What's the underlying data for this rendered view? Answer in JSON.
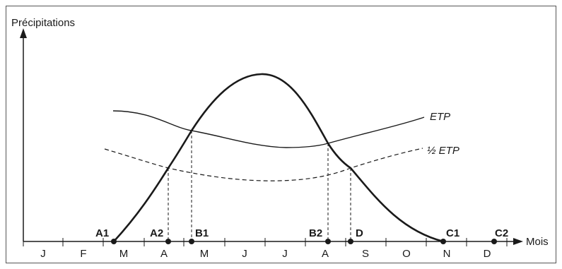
{
  "y_axis_label": "Précipitations",
  "x_axis_label": "Mois",
  "months": [
    "J",
    "F",
    "M",
    "A",
    "M",
    "J",
    "J",
    "A",
    "S",
    "O",
    "N",
    "D"
  ],
  "curves": {
    "etp_label": "ETP",
    "half_etp_label": "½ ETP"
  },
  "points": [
    {
      "id": "A1",
      "label": "A1"
    },
    {
      "id": "A2",
      "label": "A2"
    },
    {
      "id": "B1",
      "label": "B1"
    },
    {
      "id": "B2",
      "label": "B2"
    },
    {
      "id": "D",
      "label": "D"
    },
    {
      "id": "C1",
      "label": "C1"
    },
    {
      "id": "C2",
      "label": "C2"
    }
  ]
}
